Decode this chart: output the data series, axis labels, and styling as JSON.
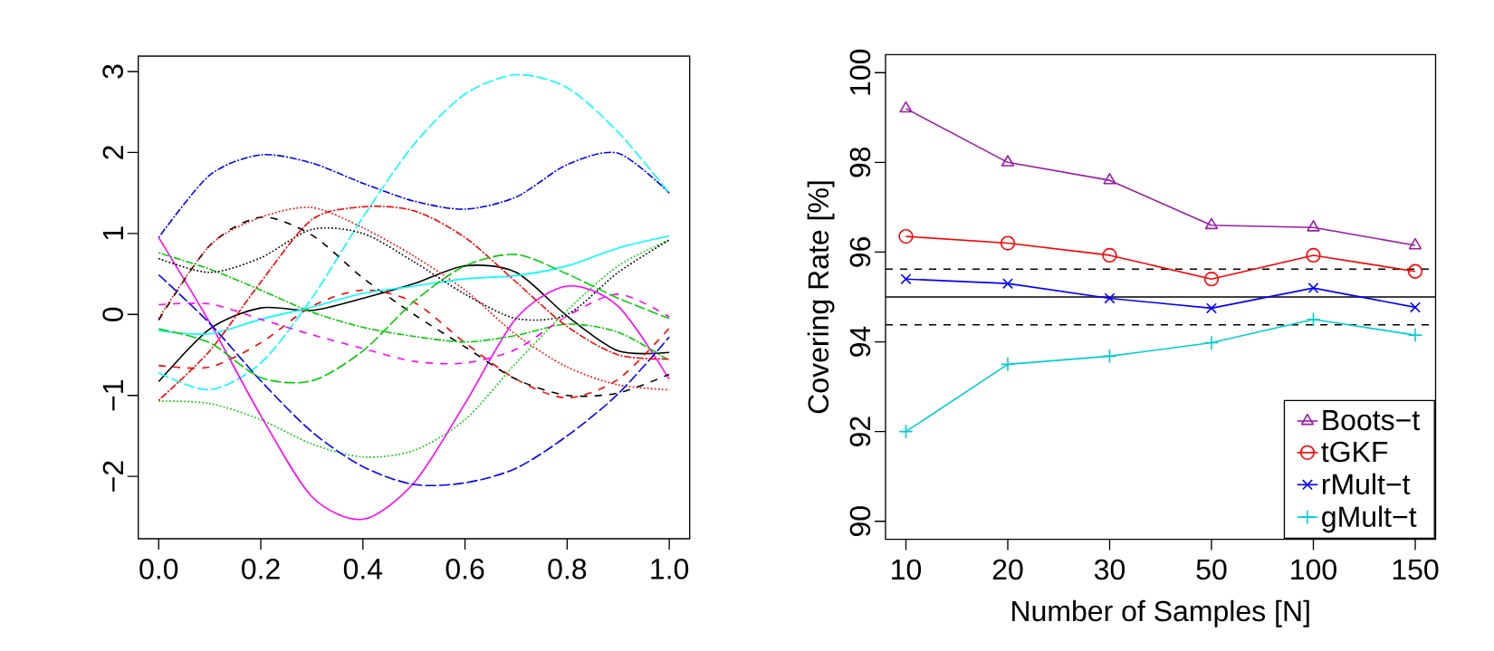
{
  "chart_data": [
    {
      "type": "line",
      "x": [
        0,
        0.1,
        0.2,
        0.3,
        0.4,
        0.5,
        0.6,
        0.7,
        0.8,
        0.9,
        1.0
      ],
      "xlim": [
        -0.04,
        1.04
      ],
      "ylim": [
        -2.77,
        3.19
      ],
      "xticks": [
        {
          "value": 0,
          "label": "0.0"
        },
        {
          "value": 0.2,
          "label": "0.2"
        },
        {
          "value": 0.4,
          "label": "0.4"
        },
        {
          "value": 0.6,
          "label": "0.6"
        },
        {
          "value": 0.8,
          "label": "0.8"
        },
        {
          "value": 1,
          "label": "1.0"
        }
      ],
      "yticks": [
        {
          "value": -2,
          "label": "−2"
        },
        {
          "value": -1,
          "label": "−1"
        },
        0,
        1,
        2,
        3
      ],
      "series": [
        {
          "color": "#000000",
          "line_style": "solid",
          "values": [
            -0.83,
            -0.18,
            0.08,
            0.05,
            0.2,
            0.38,
            0.6,
            0.52,
            -0.02,
            -0.45,
            -0.47
          ]
        },
        {
          "color": "#ff0000",
          "line_style": "dashed",
          "values": [
            -0.63,
            -0.65,
            -0.35,
            0.1,
            0.3,
            0.15,
            -0.35,
            -0.8,
            -1.03,
            -0.8,
            -0.17
          ]
        },
        {
          "color": "#00cd00",
          "line_style": "dotted",
          "values": [
            -1.07,
            -1.1,
            -1.3,
            -1.6,
            -1.76,
            -1.68,
            -1.3,
            -0.6,
            0.05,
            0.6,
            0.92
          ]
        },
        {
          "color": "#0000ff",
          "line_style": "dashdot",
          "values": [
            0.95,
            1.72,
            1.97,
            1.87,
            1.62,
            1.4,
            1.3,
            1.45,
            1.85,
            1.99,
            1.5
          ]
        },
        {
          "color": "#00ffff",
          "line_style": "longdash",
          "values": [
            -0.72,
            -0.93,
            -0.6,
            0.2,
            1.2,
            2.1,
            2.72,
            2.96,
            2.8,
            2.25,
            1.5
          ]
        },
        {
          "color": "#ff00ff",
          "line_style": "solid",
          "values": [
            0.95,
            -0.1,
            -1.25,
            -2.25,
            -2.53,
            -2.08,
            -1.1,
            -0.05,
            0.35,
            0.1,
            -0.8
          ]
        },
        {
          "color": "#000000",
          "line_style": "dashed",
          "values": [
            -0.07,
            0.85,
            1.2,
            0.98,
            0.45,
            0.0,
            -0.4,
            -0.8,
            -1.0,
            -0.97,
            -0.74
          ]
        },
        {
          "color": "#ff0000",
          "line_style": "dotted",
          "values": [
            -0.05,
            0.85,
            1.2,
            1.32,
            1.07,
            0.72,
            0.3,
            -0.25,
            -0.65,
            -0.87,
            -0.93
          ]
        },
        {
          "color": "#00cd00",
          "line_style": "dashdot",
          "values": [
            0.76,
            0.56,
            0.3,
            0.03,
            -0.16,
            -0.27,
            -0.34,
            -0.26,
            -0.12,
            -0.22,
            -0.57
          ]
        },
        {
          "color": "#0000ff",
          "line_style": "longdash",
          "values": [
            0.49,
            -0.11,
            -0.82,
            -1.45,
            -1.88,
            -2.1,
            -2.08,
            -1.9,
            -1.5,
            -0.98,
            -0.28
          ]
        },
        {
          "color": "#00ffff",
          "line_style": "solid",
          "values": [
            -0.2,
            -0.24,
            -0.06,
            0.09,
            0.26,
            0.35,
            0.44,
            0.48,
            0.6,
            0.82,
            0.97
          ]
        },
        {
          "color": "#ff00ff",
          "line_style": "dashed",
          "values": [
            0.12,
            0.13,
            -0.06,
            -0.25,
            -0.42,
            -0.58,
            -0.6,
            -0.43,
            -0.02,
            0.25,
            -0.03
          ]
        },
        {
          "color": "#000000",
          "line_style": "dotted",
          "values": [
            0.69,
            0.52,
            0.7,
            1.05,
            1.0,
            0.65,
            0.25,
            -0.05,
            0.0,
            0.52,
            0.92
          ]
        },
        {
          "color": "#ff0000",
          "line_style": "dashdot",
          "values": [
            -1.06,
            -0.45,
            0.4,
            1.17,
            1.33,
            1.28,
            0.95,
            0.4,
            -0.15,
            -0.5,
            -0.55
          ]
        },
        {
          "color": "#00cd00",
          "line_style": "longdash",
          "values": [
            -0.18,
            -0.35,
            -0.78,
            -0.82,
            -0.45,
            0.16,
            0.6,
            0.74,
            0.5,
            0.2,
            -0.05
          ]
        }
      ]
    },
    {
      "type": "line",
      "categories": [
        "10",
        "20",
        "30",
        "50",
        "100",
        "150"
      ],
      "xlabel": "Number of Samples [N]",
      "ylabel": "Covering Rate [%]",
      "ylim": [
        89.6,
        100.4
      ],
      "yticks": [
        90,
        92,
        94,
        96,
        98,
        100
      ],
      "legend": "bottom right",
      "series": [
        {
          "name": "Boots−t",
          "color": "#9a1ca8",
          "marker": "triangle",
          "values": [
            99.2,
            98.0,
            97.6,
            96.6,
            96.55,
            96.15
          ]
        },
        {
          "name": "tGKF",
          "color": "#ff0000",
          "marker": "circle",
          "values": [
            96.35,
            96.2,
            95.93,
            95.4,
            95.93,
            95.57
          ]
        },
        {
          "name": "rMult−t",
          "color": "#0000ff",
          "marker": "cross",
          "values": [
            95.4,
            95.3,
            94.97,
            94.75,
            95.2,
            94.77
          ]
        },
        {
          "name": "gMult−t",
          "color": "#00ced1",
          "marker": "plus",
          "values": [
            92.0,
            93.5,
            93.68,
            93.98,
            94.5,
            94.15
          ]
        }
      ],
      "ref_lines": [
        {
          "axis": "y",
          "value": 95,
          "color": "#000000",
          "line_style": "solid"
        },
        {
          "axis": "y",
          "value": 95.62,
          "color": "#000000",
          "line_style": "dashed"
        },
        {
          "axis": "y",
          "value": 94.38,
          "color": "#000000",
          "line_style": "dashed"
        }
      ]
    }
  ]
}
